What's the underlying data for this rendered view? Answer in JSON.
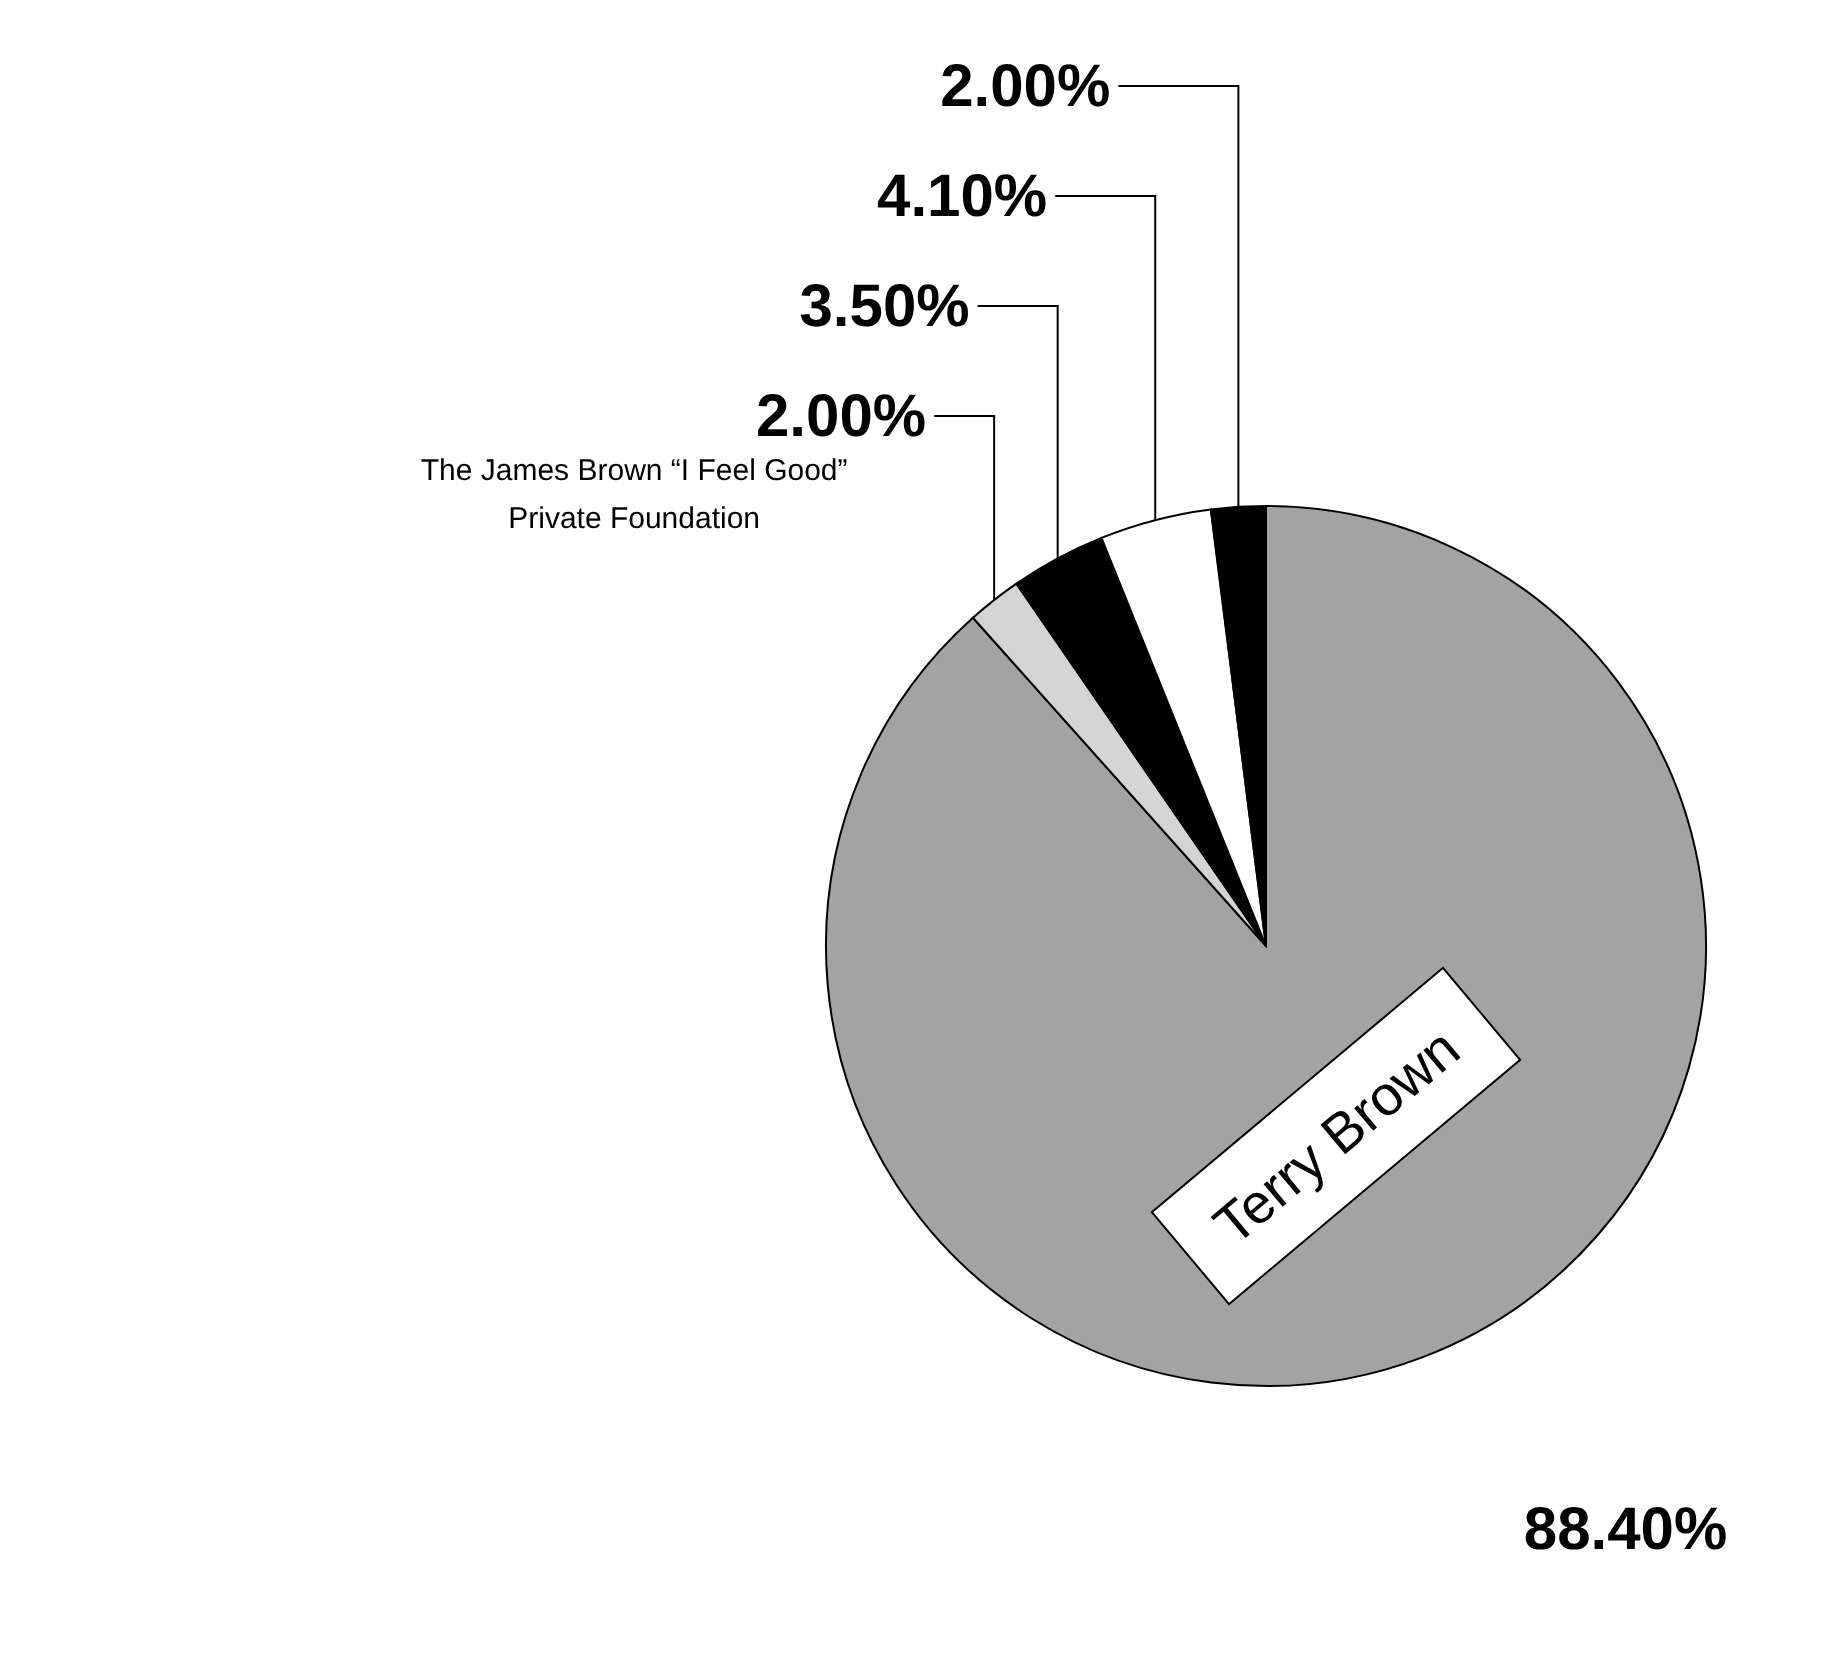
{
  "chart_data": {
    "type": "pie",
    "categories": [
      "Terry Brown",
      "The James Brown “I Feel Good” Private Foundation",
      null,
      null,
      null
    ],
    "values": [
      88.4,
      2.0,
      3.5,
      4.1,
      2.0
    ],
    "value_labels": [
      "88.40%",
      "2.00%",
      "3.50%",
      "4.10%",
      "2.00%"
    ],
    "colors": [
      "#a3a3a3",
      "#d4d4d4",
      "#000000",
      "#ffffff",
      "#000000"
    ]
  }
}
